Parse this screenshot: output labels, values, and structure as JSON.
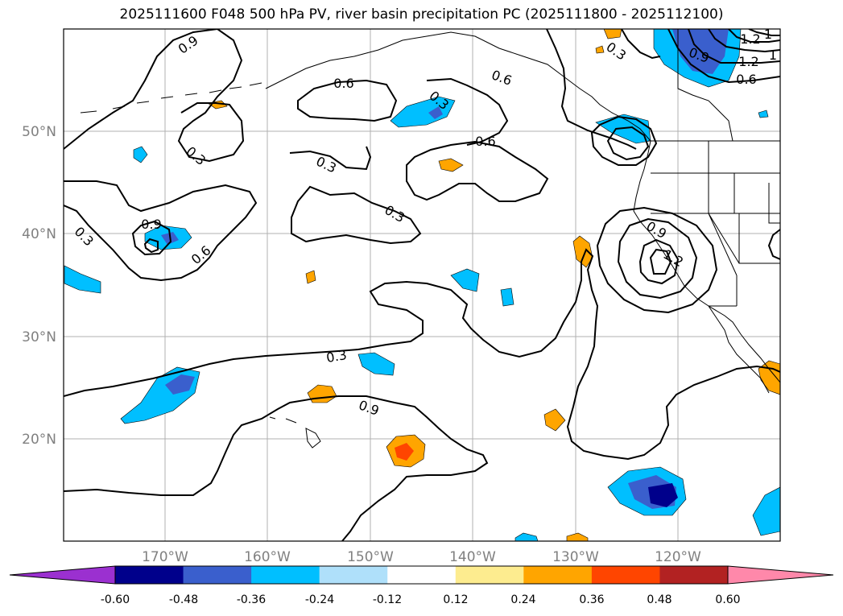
{
  "title": "2025111600 F048 500 hPa PV, river basin precipitation PC (2025111800 - 2025112100)",
  "lat_labels": [
    "50°N",
    "40°N",
    "30°N",
    "20°N"
  ],
  "lon_labels": [
    "170°W",
    "160°W",
    "150°W",
    "140°W",
    "130°W",
    "120°W"
  ],
  "contour_labels": [
    "0.9",
    "0.6",
    "0.6",
    "0.3",
    "0.9",
    "1.2",
    "1",
    "0.6",
    "1.2",
    "1",
    "0.3",
    "0.6",
    "0.3",
    "0.3",
    "0.9",
    "0.6",
    "0.3",
    "0.9",
    "1.2",
    "0.3",
    "0.3",
    "0.9"
  ],
  "colorbar": {
    "ticks": [
      "-0.60",
      "-0.48",
      "-0.36",
      "-0.24",
      "-0.12",
      "0.12",
      "0.24",
      "0.36",
      "0.48",
      "0.60"
    ],
    "colors": [
      "#9b30d0",
      "#00008b",
      "#3a5fcd",
      "#00bfff",
      "#afe0fa",
      "#ffffff",
      "#fdec8f",
      "#ffa500",
      "#ff4500",
      "#b22222",
      "#ff88aa"
    ]
  }
}
